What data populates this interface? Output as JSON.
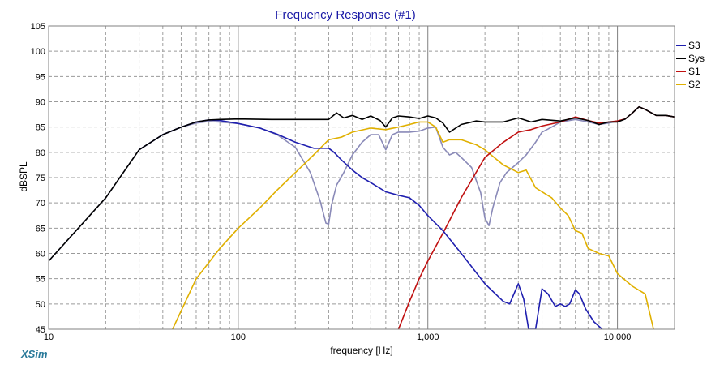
{
  "app": {
    "brand": "XSim"
  },
  "chart_data": {
    "type": "line",
    "title": "Frequency Response (#1)",
    "xlabel": "frequency [Hz]",
    "ylabel": "dBSPL",
    "xscale": "log",
    "xlim": [
      10,
      20000
    ],
    "ylim": [
      45,
      105
    ],
    "grid": true,
    "legend_position": "right",
    "x_ticks": [
      10,
      100,
      1000,
      10000
    ],
    "x_tick_labels": [
      "10",
      "100",
      "1,000",
      "10,000"
    ],
    "y_ticks": [
      45,
      50,
      55,
      60,
      65,
      70,
      75,
      80,
      85,
      90,
      95,
      100,
      105
    ],
    "y_tick_labels": [
      "45",
      "50",
      "55",
      "60",
      "65",
      "70",
      "75",
      "80",
      "85",
      "90",
      "95",
      "100",
      "105"
    ],
    "series": [
      {
        "name": "S3",
        "color": "#1f1faf",
        "x": [
          30,
          40,
          50,
          60,
          70,
          80,
          100,
          130,
          160,
          200,
          250,
          300,
          320,
          350,
          400,
          450,
          500,
          600,
          700,
          800,
          900,
          1000,
          1200,
          1500,
          2000,
          2500,
          2700,
          3000,
          3200,
          3400,
          3700,
          4000,
          4300,
          4700,
          5000,
          5300,
          5600,
          6000,
          6300,
          6800,
          7500,
          8300
        ],
        "y": [
          80.5,
          83.5,
          85,
          86,
          86.4,
          86.3,
          85.7,
          84.8,
          83.6,
          82,
          80.8,
          80.8,
          80,
          78.5,
          76.5,
          75,
          74,
          72.2,
          71.5,
          71,
          69.5,
          67.5,
          64.5,
          60,
          54,
          50.5,
          50,
          54,
          51,
          45,
          45,
          53,
          52,
          49.5,
          50,
          49.5,
          50,
          52.8,
          52,
          49,
          46.5,
          45
        ]
      },
      {
        "name": "Sys",
        "color": "#000000",
        "x": [
          10,
          20,
          30,
          40,
          50,
          60,
          70,
          80,
          100,
          150,
          200,
          250,
          300,
          330,
          360,
          400,
          450,
          500,
          560,
          600,
          650,
          700,
          800,
          900,
          1000,
          1100,
          1200,
          1300,
          1500,
          1800,
          2000,
          2500,
          3000,
          3500,
          4000,
          5000,
          6000,
          7000,
          8000,
          9000,
          10000,
          11000,
          12000,
          13000,
          14000,
          16000,
          18000,
          20000
        ],
        "y": [
          58.5,
          71,
          80.5,
          83.5,
          85,
          86,
          86.4,
          86.5,
          86.6,
          86.5,
          86.5,
          86.5,
          86.5,
          87.8,
          86.8,
          87.3,
          86.5,
          87.2,
          86.3,
          85,
          86.8,
          87.2,
          87,
          86.7,
          87.2,
          86.8,
          85.8,
          84,
          85.5,
          86.2,
          86,
          86,
          86.8,
          86,
          86.5,
          86.2,
          86.8,
          86.3,
          85.5,
          86,
          86,
          86.6,
          87.8,
          89,
          88.5,
          87.3,
          87.3,
          87
        ]
      },
      {
        "name": "S1",
        "color": "#c01010",
        "x": [
          700,
          800,
          900,
          1000,
          1200,
          1500,
          2000,
          2500,
          3000,
          3500,
          4000,
          5000,
          6000,
          7000,
          8000,
          9000,
          10000,
          11000,
          12000,
          13000,
          14000,
          16000,
          18000,
          20000
        ],
        "y": [
          45,
          50.5,
          55,
          58.5,
          64,
          71,
          79,
          82,
          84,
          84.5,
          85.2,
          86,
          87,
          86.3,
          85.8,
          86,
          86.2,
          86.6,
          87.8,
          89,
          88.5,
          87.3,
          87.3,
          87
        ]
      },
      {
        "name": "S2",
        "color": "#e0b000",
        "x": [
          45,
          60,
          80,
          100,
          130,
          160,
          200,
          250,
          300,
          350,
          400,
          500,
          600,
          700,
          800,
          900,
          1000,
          1100,
          1200,
          1300,
          1500,
          1800,
          2000,
          2500,
          3000,
          3300,
          3700,
          4500,
          5000,
          5500,
          6000,
          6500,
          7000,
          8000,
          9000,
          10000,
          12000,
          14000,
          15500
        ],
        "y": [
          45,
          55,
          61,
          65,
          69,
          72.5,
          76,
          79.5,
          82.5,
          83,
          84,
          84.8,
          84.5,
          85,
          85.5,
          86,
          86,
          85,
          82,
          82.5,
          82.5,
          81.5,
          80.5,
          77.5,
          76,
          76.5,
          73,
          71,
          69,
          67.5,
          64.5,
          64,
          61,
          60,
          59.5,
          56,
          53.5,
          52,
          45
        ]
      },
      {
        "name": "",
        "color": "#8a8ab8",
        "x": [
          10,
          20,
          30,
          40,
          50,
          60,
          70,
          80,
          100,
          130,
          160,
          200,
          240,
          270,
          290,
          300,
          310,
          330,
          360,
          400,
          450,
          500,
          550,
          600,
          650,
          700,
          800,
          900,
          1000,
          1100,
          1200,
          1300,
          1400,
          1500,
          1700,
          1900,
          2000,
          2100,
          2200,
          2400,
          2600,
          2800,
          3000,
          3300,
          3700,
          4000,
          4500,
          5000,
          6000,
          7000,
          8000,
          9000,
          10000,
          11000,
          12000,
          13000,
          14000,
          16000,
          18000,
          20000
        ],
        "y": [
          58.5,
          71,
          80.5,
          83.5,
          85,
          85.8,
          86.1,
          86,
          85.7,
          84.8,
          83.5,
          81,
          76,
          70.5,
          66,
          65.8,
          69.5,
          73.5,
          76,
          79.5,
          82,
          83.5,
          83.5,
          80.5,
          83.5,
          84,
          84,
          84.2,
          84.8,
          85,
          81,
          79.5,
          80,
          79,
          77,
          72,
          67,
          65.5,
          69,
          74,
          76,
          77,
          78,
          79.5,
          82,
          84,
          85,
          86,
          86.5,
          86,
          85.5,
          85.8,
          86.2,
          86.6,
          87.8,
          89,
          88.5,
          87.3,
          87.3,
          87
        ]
      }
    ]
  }
}
